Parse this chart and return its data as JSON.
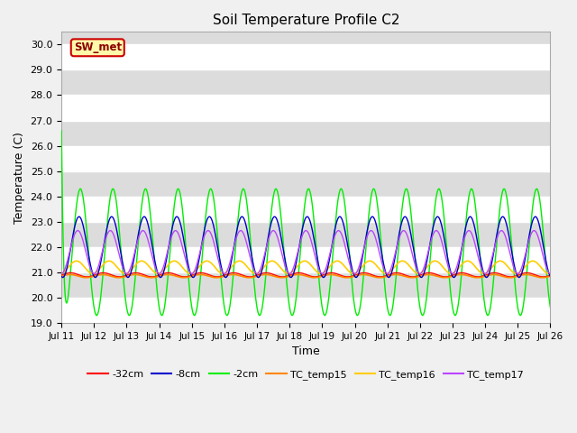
{
  "title": "Soil Temperature Profile C2",
  "xlabel": "Time",
  "ylabel": "Temperature (C)",
  "ylim": [
    19.0,
    30.5
  ],
  "yticks": [
    19.0,
    20.0,
    21.0,
    22.0,
    23.0,
    24.0,
    25.0,
    26.0,
    27.0,
    28.0,
    29.0,
    30.0
  ],
  "n_days": 15,
  "pts_per_day": 96,
  "annotation_label": "SW_met",
  "line_colors": {
    "-32cm": "#ff0000",
    "-8cm": "#0000cc",
    "-2cm": "#00ee00",
    "TC_temp15": "#ff8800",
    "TC_temp16": "#ffcc00",
    "TC_temp17": "#bb44ff"
  },
  "legend_labels": [
    "-32cm",
    "-8cm",
    "-2cm",
    "TC_temp15",
    "TC_temp16",
    "TC_temp17"
  ],
  "legend_colors": [
    "#ff0000",
    "#0000cc",
    "#00ee00",
    "#ff8800",
    "#ffcc00",
    "#bb44ff"
  ],
  "fig_bg_color": "#f0f0f0",
  "plot_bg_color": "#dcdcdc",
  "band_color": "#ffffff",
  "title_fontsize": 11
}
